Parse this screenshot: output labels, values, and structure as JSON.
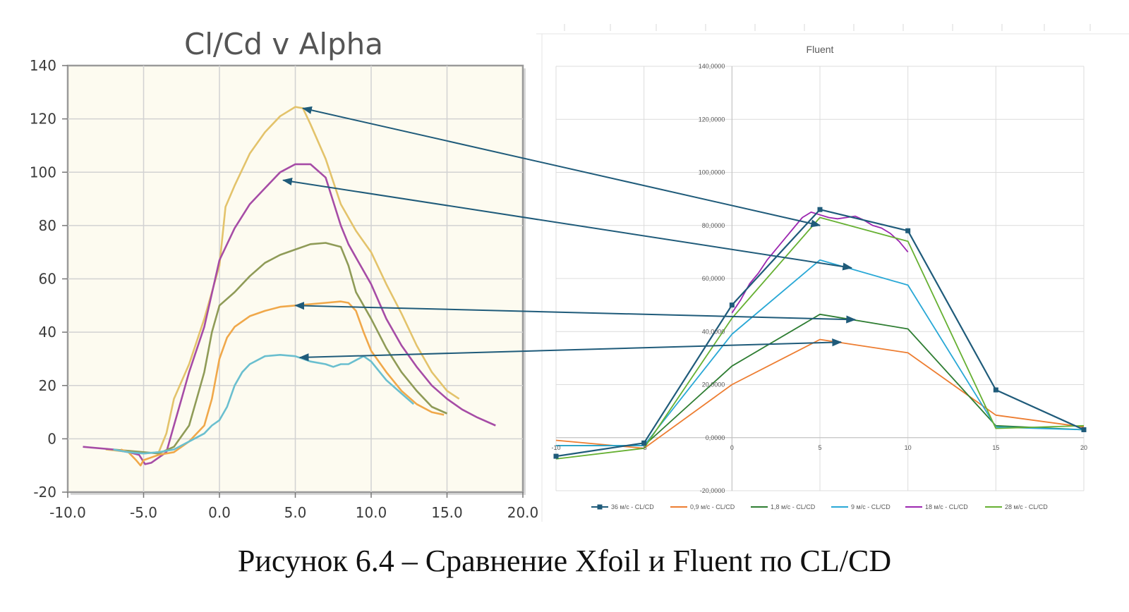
{
  "caption": "Рисунок 6.4 – Сравнение Xfoil и Fluent по CL/CD",
  "chart_data": [
    {
      "type": "line",
      "title": "Cl/Cd v Alpha",
      "xlim": [
        -10,
        20
      ],
      "ylim": [
        -20,
        140
      ],
      "xticks": [
        "-10.0",
        "-5.0",
        "0.0",
        "5.0",
        "10.0",
        "15.0",
        "20.0"
      ],
      "xtick_values": [
        -10,
        -5,
        0,
        5,
        10,
        15,
        20
      ],
      "yticks": [
        "-20",
        "0",
        "20",
        "40",
        "60",
        "80",
        "100",
        "120",
        "140"
      ],
      "ytick_values": [
        -20,
        0,
        20,
        40,
        60,
        80,
        100,
        120,
        140
      ],
      "grid": true,
      "series": [
        {
          "color": "#e3c36b",
          "points": [
            [
              -7.5,
              -4
            ],
            [
              -5,
              -5.5
            ],
            [
              -4,
              -5
            ],
            [
              -3.5,
              2
            ],
            [
              -3,
              15
            ],
            [
              -2,
              28
            ],
            [
              -1,
              45
            ],
            [
              0,
              65
            ],
            [
              0.4,
              87
            ],
            [
              1,
              95
            ],
            [
              2,
              107
            ],
            [
              3,
              115
            ],
            [
              4,
              121
            ],
            [
              5,
              124.5
            ],
            [
              5.5,
              124
            ],
            [
              6,
              118
            ],
            [
              7,
              105
            ],
            [
              8,
              88
            ],
            [
              9,
              78
            ],
            [
              10,
              70
            ],
            [
              11,
              58
            ],
            [
              12,
              47
            ],
            [
              13,
              35
            ],
            [
              14,
              25
            ],
            [
              15,
              18
            ],
            [
              15.8,
              15
            ]
          ]
        },
        {
          "color": "#a64ca6",
          "points": [
            [
              -9,
              -3
            ],
            [
              -7,
              -4
            ],
            [
              -6,
              -5
            ],
            [
              -5.3,
              -6
            ],
            [
              -4.9,
              -9.5
            ],
            [
              -4.5,
              -9
            ],
            [
              -3.5,
              -5
            ],
            [
              -3,
              5
            ],
            [
              -2.5,
              15
            ],
            [
              -2,
              25
            ],
            [
              -1,
              42
            ],
            [
              0,
              67
            ],
            [
              1,
              79
            ],
            [
              2,
              88
            ],
            [
              3,
              94
            ],
            [
              4,
              100
            ],
            [
              5,
              103
            ],
            [
              6,
              103
            ],
            [
              7,
              98
            ],
            [
              8,
              80
            ],
            [
              8.5,
              73
            ],
            [
              9,
              68
            ],
            [
              10,
              58
            ],
            [
              11,
              45
            ],
            [
              12,
              35
            ],
            [
              13,
              27
            ],
            [
              14,
              20
            ],
            [
              15,
              15
            ],
            [
              16,
              11
            ],
            [
              17,
              8
            ],
            [
              18.2,
              5
            ]
          ]
        },
        {
          "color": "#8f9b57",
          "points": [
            [
              -7,
              -4
            ],
            [
              -5,
              -5
            ],
            [
              -4,
              -5.5
            ],
            [
              -3,
              -3
            ],
            [
              -2,
              5
            ],
            [
              -1.5,
              15
            ],
            [
              -1,
              25
            ],
            [
              -0.5,
              40
            ],
            [
              0,
              50
            ],
            [
              1,
              55
            ],
            [
              2,
              61
            ],
            [
              3,
              66
            ],
            [
              4,
              69
            ],
            [
              5,
              71
            ],
            [
              6,
              73
            ],
            [
              7,
              73.5
            ],
            [
              8,
              72
            ],
            [
              8.5,
              65
            ],
            [
              9,
              55
            ],
            [
              10,
              45
            ],
            [
              11,
              34
            ],
            [
              12,
              25
            ],
            [
              13,
              18
            ],
            [
              14,
              12
            ],
            [
              15,
              9.5
            ]
          ]
        },
        {
          "color": "#f0a84a",
          "points": [
            [
              -6.5,
              -4
            ],
            [
              -6,
              -5
            ],
            [
              -5.5,
              -8
            ],
            [
              -5.2,
              -10
            ],
            [
              -5,
              -8
            ],
            [
              -4.5,
              -7
            ],
            [
              -4,
              -6
            ],
            [
              -3,
              -5
            ],
            [
              -2,
              -1
            ],
            [
              -1,
              5
            ],
            [
              -0.5,
              15
            ],
            [
              0,
              30
            ],
            [
              0.5,
              38
            ],
            [
              1,
              42
            ],
            [
              2,
              46
            ],
            [
              3,
              48
            ],
            [
              4,
              49.5
            ],
            [
              5,
              50
            ],
            [
              6,
              50.5
            ],
            [
              7,
              51
            ],
            [
              8,
              51.5
            ],
            [
              8.5,
              51
            ],
            [
              9,
              48
            ],
            [
              9.5,
              40
            ],
            [
              10,
              33
            ],
            [
              11,
              25
            ],
            [
              12,
              18
            ],
            [
              13,
              13
            ],
            [
              14,
              10
            ],
            [
              14.8,
              9
            ]
          ]
        },
        {
          "color": "#6abfcf",
          "points": [
            [
              -7,
              -4
            ],
            [
              -6,
              -5
            ],
            [
              -5,
              -5.5
            ],
            [
              -4,
              -5
            ],
            [
              -3,
              -4
            ],
            [
              -2,
              -1
            ],
            [
              -1,
              2
            ],
            [
              -0.5,
              5
            ],
            [
              0,
              7
            ],
            [
              0.5,
              12
            ],
            [
              1,
              20
            ],
            [
              1.5,
              25
            ],
            [
              2,
              28
            ],
            [
              3,
              31
            ],
            [
              4,
              31.5
            ],
            [
              5,
              31
            ],
            [
              6,
              29
            ],
            [
              7,
              28
            ],
            [
              7.5,
              27
            ],
            [
              8,
              28
            ],
            [
              8.5,
              28
            ],
            [
              9,
              29.5
            ],
            [
              9.5,
              31
            ],
            [
              10,
              29
            ],
            [
              11,
              22
            ],
            [
              12,
              17
            ],
            [
              12.8,
              13
            ]
          ]
        }
      ]
    },
    {
      "type": "line",
      "title": "Fluent",
      "xlim": [
        -10,
        20
      ],
      "ylim": [
        -20,
        140
      ],
      "xticks": [
        "-10",
        "-5",
        "0",
        "5",
        "10",
        "15",
        "20"
      ],
      "xtick_values": [
        -10,
        -5,
        0,
        5,
        10,
        15,
        20
      ],
      "yticks": [
        "-20,0000",
        "0,0000",
        "20,0000",
        "40,0000",
        "60,0000",
        "80,0000",
        "100,0000",
        "120,0000",
        "140,0000"
      ],
      "ytick_values": [
        -20,
        0,
        20,
        40,
        60,
        80,
        100,
        120,
        140
      ],
      "grid": true,
      "series": [
        {
          "name": "36 м/с - CL/CD",
          "color": "#1f5b7a",
          "markers": true,
          "x": [
            -10,
            -5,
            0,
            5,
            10,
            15,
            20
          ],
          "values": [
            -7,
            -2,
            50,
            86,
            78,
            18,
            3
          ]
        },
        {
          "name": "0,9 м/с - CL/CD",
          "color": "#ed7d31",
          "markers": false,
          "x": [
            -10,
            -5,
            0,
            5,
            10,
            15,
            20
          ],
          "values": [
            -1,
            -4,
            20,
            37,
            32,
            8.5,
            4
          ]
        },
        {
          "name": "1,8 м/с - CL/CD",
          "color": "#2e7d32",
          "markers": false,
          "x": [
            -10,
            -5,
            0,
            5,
            10,
            15,
            20
          ],
          "values": [
            -3,
            -3,
            27,
            46.5,
            41,
            4.5,
            3
          ]
        },
        {
          "name": "9 м/с - CL/CD",
          "color": "#29a8d6",
          "markers": false,
          "x": [
            -10,
            -5,
            0,
            5,
            10,
            15,
            20
          ],
          "values": [
            -3,
            -3,
            39,
            67,
            57.5,
            4,
            3
          ]
        },
        {
          "name": "18 м/с - CL/CD",
          "color": "#9c27b0",
          "markers": false,
          "x": [
            0,
            0.5,
            1,
            1.5,
            2,
            2.5,
            3,
            3.5,
            4,
            4.5,
            5,
            5.5,
            6,
            6.5,
            7,
            7.5,
            8,
            8.5,
            9,
            9.5,
            10
          ],
          "values": [
            47,
            52,
            58,
            62,
            67,
            71,
            75,
            79,
            83,
            85,
            84,
            83,
            82.5,
            83,
            83.5,
            82,
            80,
            79,
            77,
            74,
            70
          ]
        },
        {
          "name": "28 м/с - CL/CD",
          "color": "#66b032",
          "markers": false,
          "x": [
            -10,
            -5,
            0,
            5,
            10,
            15,
            20
          ],
          "values": [
            -8,
            -4,
            45,
            83,
            74,
            3.5,
            4.5
          ]
        }
      ]
    }
  ],
  "arrows": {
    "color": "#1f5b7a",
    "links": [
      {
        "from_curve": 0,
        "from": [
          5.5,
          124
        ],
        "to_series": 0,
        "to": [
          5,
          80
        ]
      },
      {
        "from_curve": 1,
        "from": [
          4.2,
          97
        ],
        "to_series": 1,
        "to": [
          6.8,
          64
        ]
      },
      {
        "from_curve": 3,
        "from": [
          5,
          50
        ],
        "to_series": 2,
        "to": [
          7,
          44.5
        ]
      },
      {
        "from_curve": 4,
        "from": [
          5.3,
          30.5
        ],
        "to_series": 3,
        "to": [
          6.2,
          36
        ]
      }
    ]
  }
}
